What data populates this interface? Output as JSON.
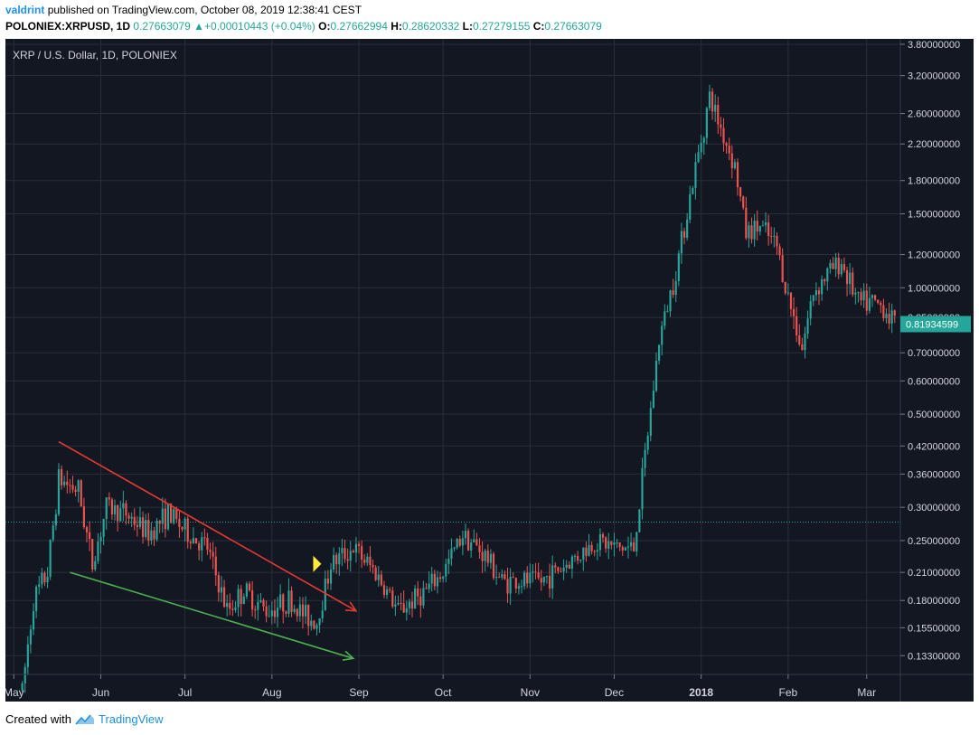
{
  "header": {
    "author": "valdrint",
    "published": "published on TradingView.com, October 08, 2019 12:38:41 CEST",
    "symbol": "POLONIEX:XRPUSD, 1D",
    "last": "0.27663079",
    "change": "+0.00010443 (+0.04%)",
    "o_label": "O:",
    "o": "0.27662994",
    "h_label": "H:",
    "h": "0.28620332",
    "l_label": "L:",
    "l": "0.27279155",
    "c_label": "C:",
    "c": "0.27663079"
  },
  "footer": {
    "created": "Created with",
    "brand": "TradingView"
  },
  "colors": {
    "background": "#131722",
    "grid": "#2a2e39",
    "up": "#26a69a",
    "down": "#ef5350",
    "axis_text": "#d1d4dc",
    "price_line": "#26a69a",
    "red_line": "#e53935",
    "green_line": "#4caf50",
    "marker": "#ffeb3b"
  },
  "chart_data": {
    "type": "candlestick",
    "title": "XRP / U.S. Dollar, 1D, POLONIEX",
    "y_scale": "log",
    "ylim": [
      0.12,
      3.8
    ],
    "y_ticks": [
      "0.13300000",
      "0.15500000",
      "0.18000000",
      "0.21000000",
      "0.25000000",
      "0.30000000",
      "0.36000000",
      "0.42000000",
      "0.50000000",
      "0.60000000",
      "0.70000000",
      "0.85000000",
      "1.00000000",
      "1.20000000",
      "1.50000000",
      "1.80000000",
      "2.20000000",
      "2.60000000",
      "3.20000000",
      "3.80000000"
    ],
    "x_ticks": [
      "May",
      "Jun",
      "Jul",
      "Aug",
      "Sep",
      "Oct",
      "Nov",
      "Dec",
      "2018",
      "Feb",
      "Mar"
    ],
    "x_start": "2017-04-28",
    "x_end": "2018-03-13",
    "current_price_label": "0.81934599",
    "current_price": 0.8193,
    "horizontal_line": 0.2766,
    "key_points": [
      {
        "date": "2017-05-04",
        "close": 0.11
      },
      {
        "date": "2017-05-08",
        "close": 0.18
      },
      {
        "date": "2017-05-13",
        "close": 0.21
      },
      {
        "date": "2017-05-17",
        "close": 0.35
      },
      {
        "date": "2017-05-24",
        "close": 0.33
      },
      {
        "date": "2017-05-29",
        "close": 0.22
      },
      {
        "date": "2017-06-03",
        "close": 0.3
      },
      {
        "date": "2017-06-10",
        "close": 0.29
      },
      {
        "date": "2017-06-18",
        "close": 0.26
      },
      {
        "date": "2017-06-25",
        "close": 0.29
      },
      {
        "date": "2017-07-02",
        "close": 0.26
      },
      {
        "date": "2017-07-09",
        "close": 0.24
      },
      {
        "date": "2017-07-16",
        "close": 0.17
      },
      {
        "date": "2017-07-22",
        "close": 0.19
      },
      {
        "date": "2017-07-30",
        "close": 0.17
      },
      {
        "date": "2017-08-07",
        "close": 0.18
      },
      {
        "date": "2017-08-13",
        "close": 0.165
      },
      {
        "date": "2017-08-17",
        "close": 0.16
      },
      {
        "date": "2017-08-22",
        "close": 0.22
      },
      {
        "date": "2017-08-30",
        "close": 0.24
      },
      {
        "date": "2017-09-07",
        "close": 0.21
      },
      {
        "date": "2017-09-15",
        "close": 0.17
      },
      {
        "date": "2017-09-25",
        "close": 0.19
      },
      {
        "date": "2017-10-01",
        "close": 0.21
      },
      {
        "date": "2017-10-08",
        "close": 0.26
      },
      {
        "date": "2017-10-16",
        "close": 0.23
      },
      {
        "date": "2017-10-22",
        "close": 0.2
      },
      {
        "date": "2017-11-05",
        "close": 0.2
      },
      {
        "date": "2017-11-14",
        "close": 0.22
      },
      {
        "date": "2017-11-25",
        "close": 0.25
      },
      {
        "date": "2017-12-02",
        "close": 0.24
      },
      {
        "date": "2017-12-08",
        "close": 0.24
      },
      {
        "date": "2017-12-13",
        "close": 0.45
      },
      {
        "date": "2017-12-17",
        "close": 0.75
      },
      {
        "date": "2017-12-23",
        "close": 1.1
      },
      {
        "date": "2017-12-28",
        "close": 1.65
      },
      {
        "date": "2018-01-01",
        "close": 2.25
      },
      {
        "date": "2018-01-04",
        "close": 2.85
      },
      {
        "date": "2018-01-08",
        "close": 2.4
      },
      {
        "date": "2018-01-13",
        "close": 1.95
      },
      {
        "date": "2018-01-17",
        "close": 1.35
      },
      {
        "date": "2018-01-22",
        "close": 1.4
      },
      {
        "date": "2018-01-28",
        "close": 1.25
      },
      {
        "date": "2018-02-01",
        "close": 0.95
      },
      {
        "date": "2018-02-06",
        "close": 0.72
      },
      {
        "date": "2018-02-10",
        "close": 0.98
      },
      {
        "date": "2018-02-16",
        "close": 1.1
      },
      {
        "date": "2018-02-20",
        "close": 1.15
      },
      {
        "date": "2018-02-26",
        "close": 0.92
      },
      {
        "date": "2018-03-03",
        "close": 0.92
      },
      {
        "date": "2018-03-07",
        "close": 0.9
      },
      {
        "date": "2018-03-11",
        "close": 0.82
      }
    ],
    "annotations": [
      {
        "type": "trend_arrow",
        "color": "red",
        "from": {
          "date": "2017-05-17",
          "y": 0.43
        },
        "to": {
          "date": "2017-08-31",
          "y": 0.17
        }
      },
      {
        "type": "trend_arrow",
        "color": "green",
        "from": {
          "date": "2017-05-21",
          "y": 0.21
        },
        "to": {
          "date": "2017-08-30",
          "y": 0.131
        }
      },
      {
        "type": "marker",
        "color": "yellow",
        "at": {
          "date": "2017-08-17",
          "y": 0.22
        }
      }
    ]
  }
}
